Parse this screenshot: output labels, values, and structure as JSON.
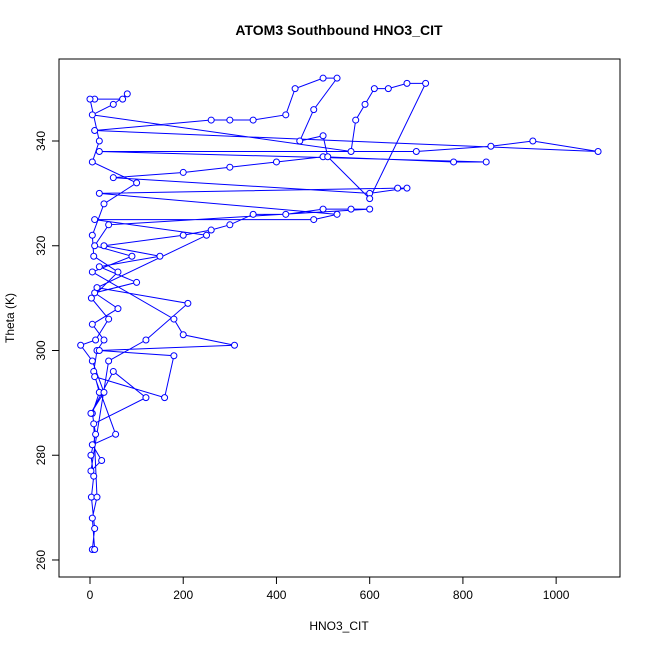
{
  "chart_data": {
    "type": "line",
    "title": "ATOM3 Southbound HNO3_CIT",
    "x_label": "HNO3_CIT",
    "y_label": "Theta (K)",
    "x": [
      5,
      10,
      3,
      8,
      2,
      12,
      5,
      20,
      8,
      15,
      30,
      5,
      60,
      10,
      100,
      20,
      150,
      30,
      200,
      260,
      300,
      350,
      420,
      500,
      560,
      600,
      40,
      10,
      90,
      5,
      180,
      200,
      310,
      20,
      180,
      160,
      10,
      55,
      5,
      25,
      2,
      40,
      120,
      210,
      15,
      250,
      10,
      480,
      530,
      20,
      660,
      680,
      600,
      50,
      200,
      300,
      400,
      500,
      780,
      850,
      20,
      700,
      860,
      950,
      1090,
      10,
      260,
      300,
      350,
      420,
      440,
      500,
      530,
      480,
      450,
      500,
      510,
      600,
      720,
      680,
      640,
      610,
      590,
      570,
      560,
      5,
      50,
      80,
      70,
      10,
      0,
      20,
      5,
      100,
      30,
      5,
      8,
      60,
      3,
      40,
      12,
      -20,
      5,
      30,
      2,
      50,
      120,
      8,
      15,
      5,
      10
    ],
    "series": [
      {
        "name": "HNO3_CIT",
        "color": "#0000ff",
        "values": [
          262,
          266,
          272,
          276,
          280,
          284,
          288,
          292,
          296,
          300,
          302,
          305,
          308,
          311,
          313,
          316,
          318,
          320,
          322,
          323,
          324,
          326,
          326,
          327,
          327,
          327,
          324,
          320,
          318,
          315,
          306,
          303,
          301,
          300,
          299,
          291,
          295,
          284,
          282,
          279,
          277,
          298,
          302,
          309,
          312,
          322,
          325,
          325,
          326,
          330,
          331,
          331,
          330,
          333,
          334,
          335,
          336,
          337,
          336,
          336,
          338,
          338,
          339,
          340,
          338,
          342,
          344,
          344,
          344,
          345,
          350,
          352,
          352,
          346,
          340,
          341,
          337,
          329,
          351,
          351,
          350,
          350,
          347,
          344,
          338,
          345,
          347,
          349,
          348,
          348,
          348,
          340,
          336,
          332,
          328,
          322,
          318,
          315,
          310,
          306,
          302,
          301,
          298,
          292,
          288,
          296,
          291,
          286,
          272,
          268,
          262
        ]
      }
    ],
    "xlim": [
      -66.5,
      1137
    ],
    "ylim": [
      256.75,
      355.66
    ],
    "xticks": [
      0,
      200,
      400,
      600,
      800,
      1000
    ],
    "yticks": [
      260,
      280,
      300,
      320,
      340
    ]
  }
}
